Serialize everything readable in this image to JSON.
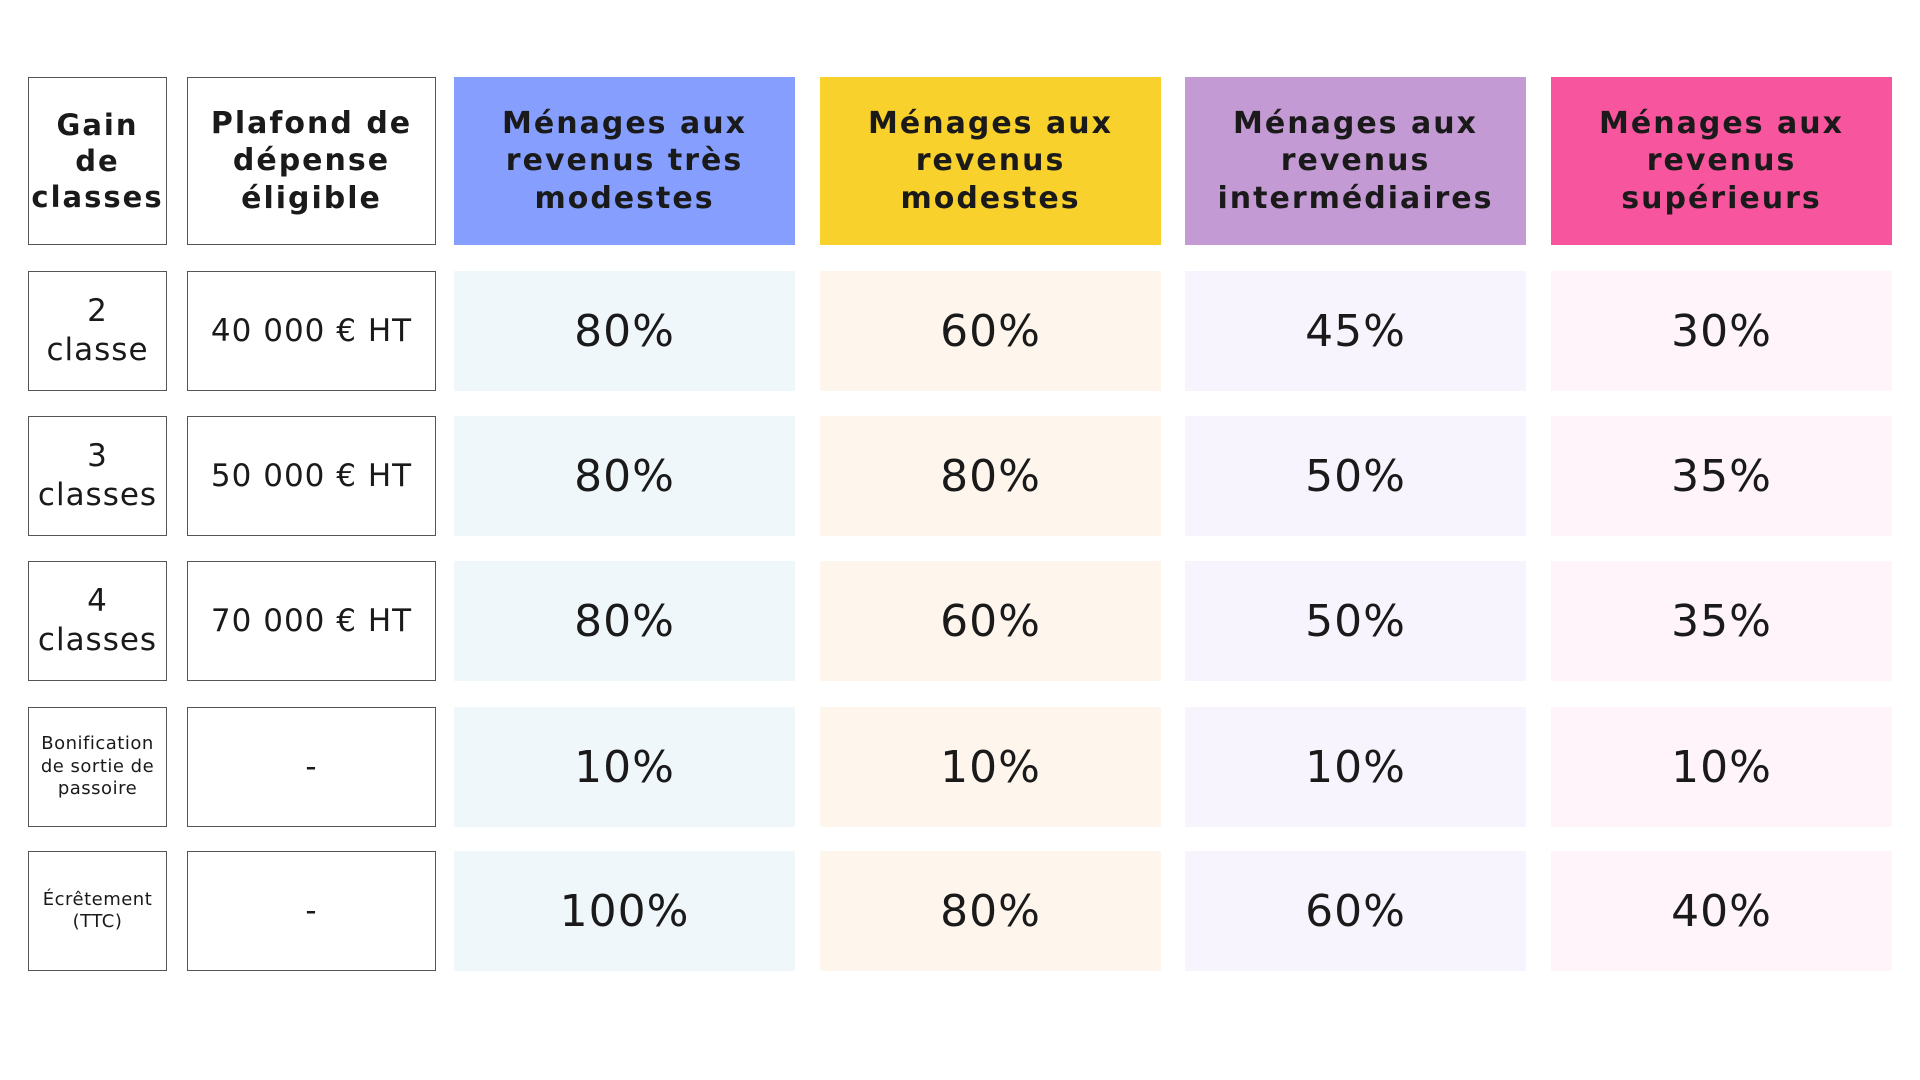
{
  "table": {
    "header": [
      "Gain de classes",
      "Plafond de dépense éligible",
      "Ménages aux revenus très modestes",
      "Ménages aux revenus modestes",
      "Ménages aux revenus intermédiaires",
      "Ménages aux revenus supérieurs"
    ],
    "rows": [
      [
        "2 classe",
        "40 000 € HT",
        "80%",
        "60%",
        "45%",
        "30%"
      ],
      [
        "3 classes",
        "50 000 € HT",
        "80%",
        "80%",
        "50%",
        "35%"
      ],
      [
        "4 classes",
        "70 000 € HT",
        "80%",
        "60%",
        "50%",
        "35%"
      ],
      [
        "Bonification de sortie de passoire",
        "-",
        "10%",
        "10%",
        "10%",
        "10%"
      ],
      [
        "Écrêtement (TTC)",
        "-",
        "100%",
        "80%",
        "60%",
        "40%"
      ]
    ]
  }
}
